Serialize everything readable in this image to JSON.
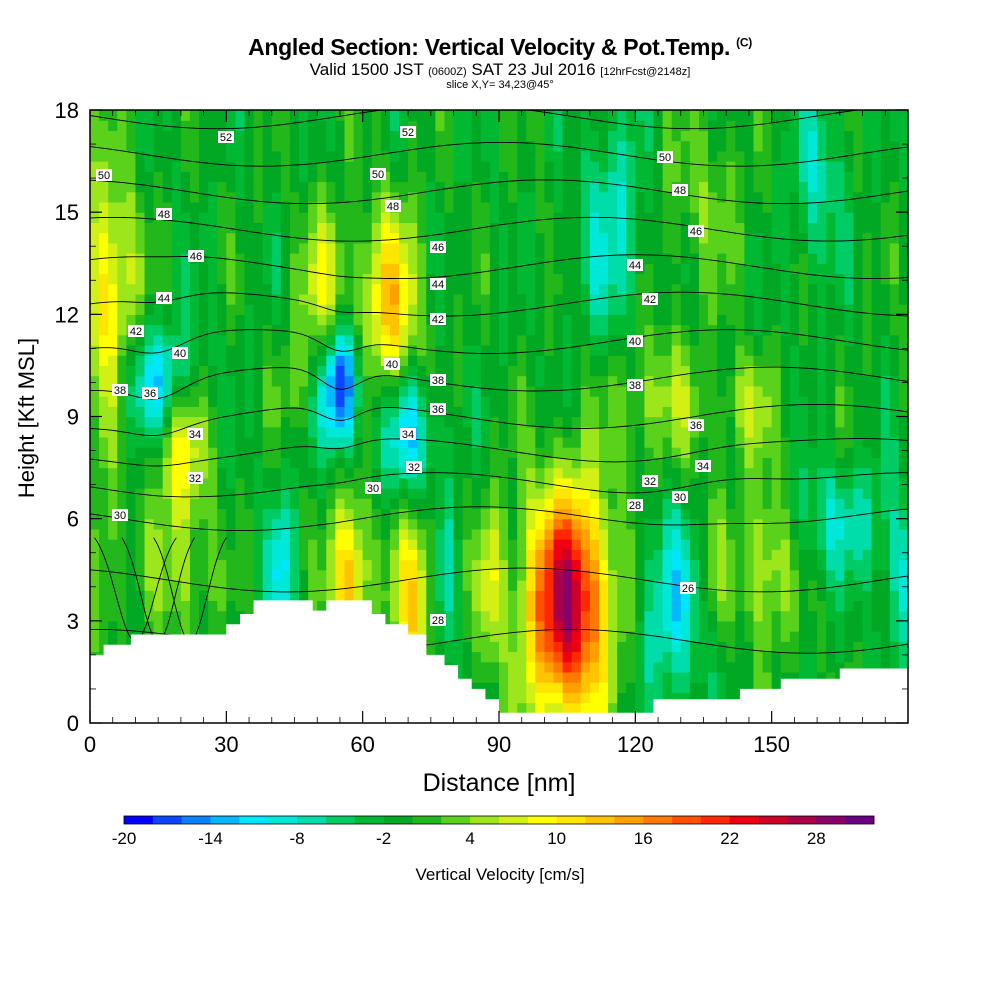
{
  "chart_data": {
    "type": "heatmap",
    "title_main": "Angled Section: Vertical Velocity & Pot.Temp.",
    "title_mark": "(C)",
    "subtitle_a": "Valid 1500 JST",
    "subtitle_b": "(0600Z)",
    "subtitle_c": "SAT 23 Jul 2016",
    "subtitle_d": "[12hrFcst@2148z]",
    "slice_label": "slice X,Y= 34,23@45°",
    "xlabel": "Distance [nm]",
    "ylabel": "Height [Kft MSL]",
    "xlim": [
      0,
      175
    ],
    "ylim": [
      0,
      18
    ],
    "xticks": [
      0,
      30,
      60,
      90,
      120,
      150
    ],
    "xtick_labels": [
      "0",
      "30",
      "60",
      "90",
      "120",
      "150"
    ],
    "yticks": [
      0,
      3,
      6,
      9,
      12,
      15,
      18
    ],
    "ytick_labels": [
      "0",
      "3",
      "6",
      "9",
      "12",
      "15",
      "18"
    ],
    "colorbar": {
      "label": "Vertical Velocity [cm/s]",
      "min": -20,
      "step": 2,
      "tick_values": [
        -20,
        -14,
        -8,
        -2,
        4,
        10,
        16,
        22,
        28
      ],
      "tick_labels": [
        "-20",
        "-14",
        "-8",
        "-2",
        "4",
        "10",
        "16",
        "22",
        "28"
      ],
      "colors": [
        "#0000ff",
        "#0c46ff",
        "#0a82ff",
        "#05b8ff",
        "#00e6ff",
        "#00e8d8",
        "#00dcaa",
        "#00cc66",
        "#00b832",
        "#00a824",
        "#22b81c",
        "#5ad21c",
        "#9ee61c",
        "#d2f014",
        "#ffff00",
        "#ffe600",
        "#ffc400",
        "#ffa000",
        "#ff7a00",
        "#ff5000",
        "#ff2800",
        "#ee0010",
        "#cc0028",
        "#aa0048",
        "#880068",
        "#6a0084"
      ]
    },
    "terrain_kft": [
      [
        0,
        2.0
      ],
      [
        3,
        2.0
      ],
      [
        3,
        2.3
      ],
      [
        9,
        2.3
      ],
      [
        9,
        2.6
      ],
      [
        30,
        2.6
      ],
      [
        30,
        2.9
      ],
      [
        33,
        2.9
      ],
      [
        33,
        3.2
      ],
      [
        36,
        3.2
      ],
      [
        36,
        3.6
      ],
      [
        49,
        3.6
      ],
      [
        49,
        3.3
      ],
      [
        52,
        3.3
      ],
      [
        52,
        3.6
      ],
      [
        62,
        3.6
      ],
      [
        62,
        3.2
      ],
      [
        65,
        3.2
      ],
      [
        65,
        2.9
      ],
      [
        70,
        2.9
      ],
      [
        70,
        2.6
      ],
      [
        74,
        2.6
      ],
      [
        74,
        2.0
      ],
      [
        78,
        2.0
      ],
      [
        78,
        1.7
      ],
      [
        81,
        1.7
      ],
      [
        81,
        1.3
      ],
      [
        84,
        1.3
      ],
      [
        84,
        1.0
      ],
      [
        87,
        1.0
      ],
      [
        87,
        0.7
      ],
      [
        90,
        0.7
      ],
      [
        90,
        0.3
      ],
      [
        124,
        0.3
      ],
      [
        124,
        0.7
      ],
      [
        143,
        0.7
      ],
      [
        143,
        1.0
      ],
      [
        152,
        1.0
      ],
      [
        152,
        1.3
      ],
      [
        165,
        1.3
      ],
      [
        165,
        1.6
      ],
      [
        175,
        1.6
      ]
    ],
    "updrafts": [
      {
        "x": 105,
        "y": 3.5,
        "sx": 6.5,
        "sy": 2.4,
        "w": 28
      },
      {
        "x": 57,
        "y": 4.3,
        "sx": 3,
        "sy": 1.6,
        "w": 15
      },
      {
        "x": 71,
        "y": 3.6,
        "sx": 3,
        "sy": 1.8,
        "w": 13
      },
      {
        "x": 149,
        "y": 4.8,
        "sx": 4,
        "sy": 1.7,
        "w": 9
      },
      {
        "x": 137,
        "y": 4.8,
        "sx": 2.5,
        "sy": 1.5,
        "w": 5
      },
      {
        "x": 20,
        "y": 4.5,
        "sx": 5,
        "sy": 1.6,
        "w": 6
      },
      {
        "x": 3,
        "y": 4.5,
        "sx": 2.5,
        "sy": 1.6,
        "w": 6
      },
      {
        "x": 88,
        "y": 4.0,
        "sx": 2,
        "sy": 1.8,
        "w": 8
      },
      {
        "x": 4,
        "y": 12.5,
        "sx": 4.5,
        "sy": 2.7,
        "w": 12
      },
      {
        "x": 52,
        "y": 12.6,
        "sx": 4,
        "sy": 1.8,
        "w": 9
      },
      {
        "x": 66,
        "y": 12.3,
        "sx": 4.5,
        "sy": 2,
        "w": 13
      },
      {
        "x": 20,
        "y": 8.2,
        "sx": 4,
        "sy": 1.5,
        "w": 10
      },
      {
        "x": 125,
        "y": 9.5,
        "sx": 8,
        "sy": 1.5,
        "w": 6
      },
      {
        "x": 145,
        "y": 9.3,
        "sx": 4,
        "sy": 1.1,
        "w": 6
      },
      {
        "x": 135,
        "y": 15.5,
        "sx": 7,
        "sy": 2,
        "w": 4
      },
      {
        "x": 45,
        "y": 10.0,
        "sx": 3,
        "sy": 1,
        "w": 3
      }
    ],
    "downdrafts": [
      {
        "x": 55,
        "y": 10.0,
        "sx": 3,
        "sy": 1.3,
        "w": -20
      },
      {
        "x": 70,
        "y": 8.5,
        "sx": 4,
        "sy": 1.3,
        "w": -11
      },
      {
        "x": 15,
        "y": 10.0,
        "sx": 6,
        "sy": 1.2,
        "w": -11
      },
      {
        "x": 128,
        "y": 3.5,
        "sx": 5,
        "sy": 2,
        "w": -9
      },
      {
        "x": 42,
        "y": 4.5,
        "sx": 2.2,
        "sy": 1.6,
        "w": -9
      },
      {
        "x": 78,
        "y": 4.0,
        "sx": 1.5,
        "sy": 2,
        "w": -6
      },
      {
        "x": 165,
        "y": 6.0,
        "sx": 9,
        "sy": 1.2,
        "w": -6
      },
      {
        "x": 180,
        "y": 4.0,
        "sx": 4,
        "sy": 1.5,
        "w": -7
      },
      {
        "x": 115,
        "y": 14.5,
        "sx": 5,
        "sy": 2.5,
        "w": -7
      },
      {
        "x": 160,
        "y": 16.0,
        "sx": 4,
        "sy": 2,
        "w": -6
      }
    ],
    "background_w": -1,
    "theta_levels": [
      26,
      28,
      30,
      32,
      34,
      36,
      38,
      40,
      42,
      44,
      46,
      48,
      50,
      52
    ],
    "contour_labels": [
      {
        "x": 226,
        "y": 137,
        "text": "52"
      },
      {
        "x": 408,
        "y": 132,
        "text": "52"
      },
      {
        "x": 104,
        "y": 175,
        "text": "50"
      },
      {
        "x": 378,
        "y": 174,
        "text": "50"
      },
      {
        "x": 665,
        "y": 157,
        "text": "50"
      },
      {
        "x": 164,
        "y": 214,
        "text": "48"
      },
      {
        "x": 393,
        "y": 206,
        "text": "48"
      },
      {
        "x": 680,
        "y": 190,
        "text": "48"
      },
      {
        "x": 196,
        "y": 256,
        "text": "46"
      },
      {
        "x": 438,
        "y": 247,
        "text": "46"
      },
      {
        "x": 696,
        "y": 231,
        "text": "46"
      },
      {
        "x": 164,
        "y": 298,
        "text": "44"
      },
      {
        "x": 438,
        "y": 284,
        "text": "44"
      },
      {
        "x": 635,
        "y": 265,
        "text": "44"
      },
      {
        "x": 136,
        "y": 331,
        "text": "42"
      },
      {
        "x": 438,
        "y": 319,
        "text": "42"
      },
      {
        "x": 650,
        "y": 299,
        "text": "42"
      },
      {
        "x": 180,
        "y": 353,
        "text": "40"
      },
      {
        "x": 392,
        "y": 364,
        "text": "40"
      },
      {
        "x": 635,
        "y": 341,
        "text": "40"
      },
      {
        "x": 120,
        "y": 390,
        "text": "38"
      },
      {
        "x": 438,
        "y": 380,
        "text": "38"
      },
      {
        "x": 635,
        "y": 385,
        "text": "38"
      },
      {
        "x": 150,
        "y": 393,
        "text": "36"
      },
      {
        "x": 438,
        "y": 409,
        "text": "36"
      },
      {
        "x": 696,
        "y": 425,
        "text": "36"
      },
      {
        "x": 195,
        "y": 434,
        "text": "34"
      },
      {
        "x": 408,
        "y": 434,
        "text": "34"
      },
      {
        "x": 703,
        "y": 466,
        "text": "34"
      },
      {
        "x": 195,
        "y": 478,
        "text": "32"
      },
      {
        "x": 414,
        "y": 467,
        "text": "32"
      },
      {
        "x": 650,
        "y": 481,
        "text": "32"
      },
      {
        "x": 120,
        "y": 515,
        "text": "30"
      },
      {
        "x": 373,
        "y": 488,
        "text": "30"
      },
      {
        "x": 680,
        "y": 497,
        "text": "30"
      },
      {
        "x": 635,
        "y": 505,
        "text": "28"
      },
      {
        "x": 438,
        "y": 620,
        "text": "28"
      },
      {
        "x": 688,
        "y": 588,
        "text": "26"
      }
    ]
  }
}
